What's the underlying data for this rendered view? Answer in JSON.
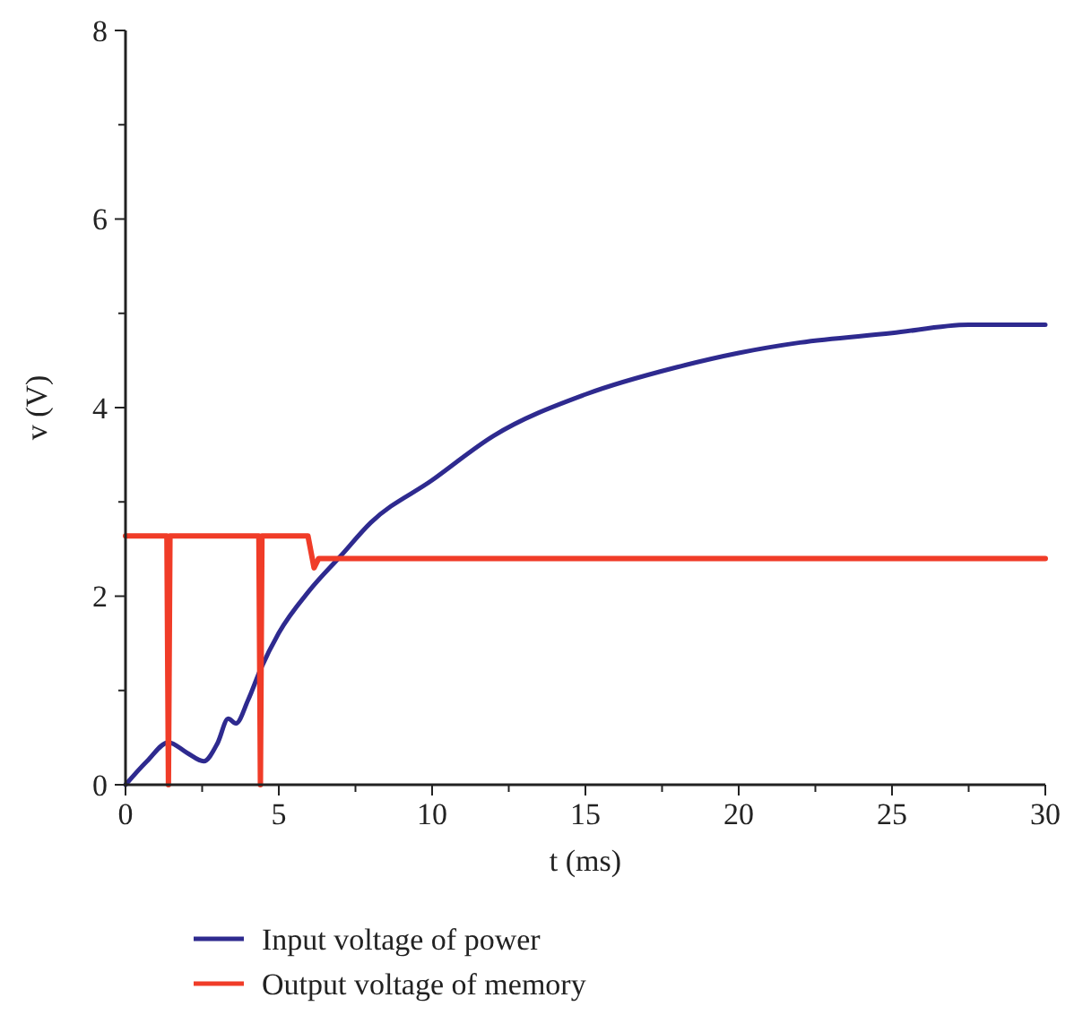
{
  "chart_data": {
    "type": "line",
    "xlabel": "t (ms)",
    "ylabel": "v (V)",
    "xlim": [
      0,
      30
    ],
    "ylim": [
      0,
      8
    ],
    "xticks": [
      0,
      {
        "value": 2.5,
        "label": null
      },
      5,
      {
        "value": 7.5,
        "label": null
      },
      10,
      {
        "value": 12.5,
        "label": null
      },
      15,
      {
        "value": 17.5,
        "label": null
      },
      20,
      {
        "value": 22.5,
        "label": null
      },
      25,
      {
        "value": 27.5,
        "label": null
      },
      30
    ],
    "yticks": [
      0,
      {
        "value": 1,
        "label": null
      },
      2,
      {
        "value": 3,
        "label": null
      },
      4,
      {
        "value": 5,
        "label": null
      },
      6,
      {
        "value": 7,
        "label": null
      },
      8
    ],
    "grid": false,
    "legend": "bottom",
    "marker": "none",
    "line_style": "solid",
    "series": [
      {
        "name": "Input voltage of power",
        "color": "#2e2a8f",
        "x": [
          0,
          0.7,
          1.4,
          2,
          2.55,
          3,
          3.35,
          3.6,
          4,
          4.4,
          5,
          6,
          7,
          8,
          10,
          12,
          15,
          18,
          20,
          22,
          25,
          27.5,
          30
        ],
        "values": [
          0,
          0.25,
          0.45,
          0.34,
          0.25,
          0.44,
          0.7,
          0.65,
          0.9,
          1.22,
          1.61,
          2.06,
          2.42,
          2.78,
          3.23,
          3.7,
          4.14,
          4.43,
          4.58,
          4.69,
          4.79,
          4.88,
          4.88
        ]
      },
      {
        "name": "Output voltage of memory",
        "color": "#f03c28",
        "x": [
          0,
          1.35,
          1.4,
          1.45,
          4.35,
          4.4,
          4.45,
          5.95,
          6.15,
          6.3,
          30
        ],
        "values": [
          2.64,
          2.64,
          0,
          2.64,
          2.64,
          0,
          2.64,
          2.64,
          2.3,
          2.4,
          2.4
        ]
      }
    ]
  }
}
